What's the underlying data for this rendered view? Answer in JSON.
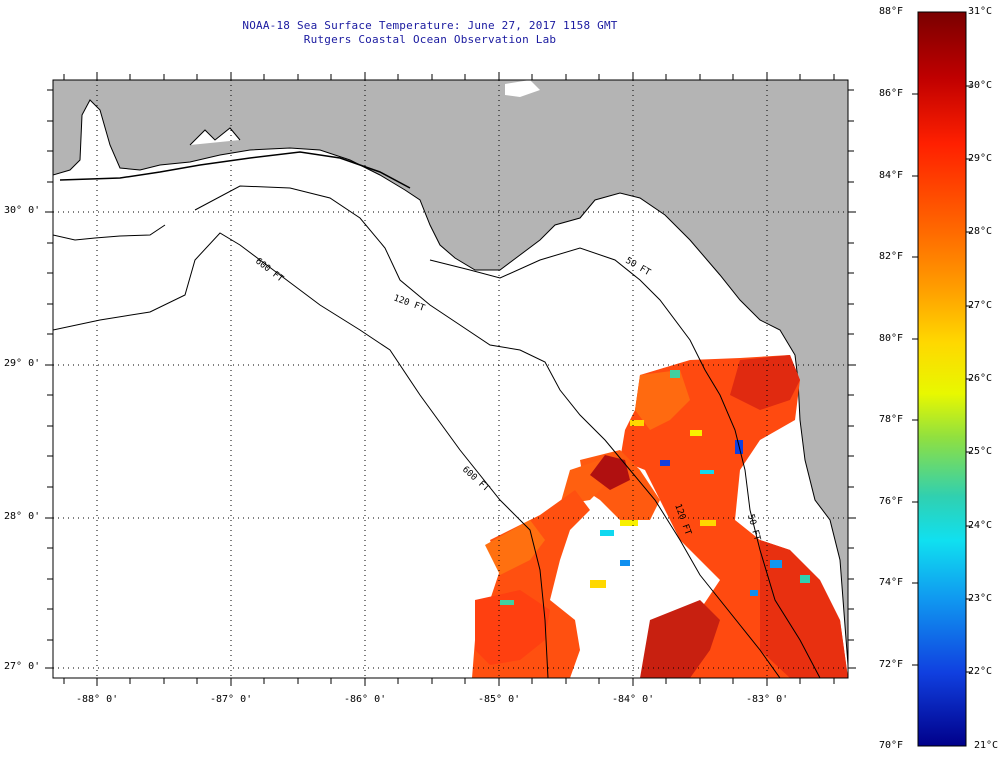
{
  "header": {
    "title": "NOAA-18 Sea Surface Temperature:  June 27, 2017 1158 GMT",
    "subtitle": "Rutgers Coastal Ocean Observation Lab"
  },
  "map": {
    "lat_labels": [
      "30° 0'",
      "29° 0'",
      "28° 0'",
      "27° 0'"
    ],
    "lon_labels": [
      "-88° 0'",
      "-87° 0'",
      "-86° 0'",
      "-85° 0'",
      "-84° 0'",
      "-83° 0'"
    ],
    "contour_labels": [
      "50 FT",
      "120 FT",
      "600 FT",
      "600 FT",
      "120 FT",
      "50 FT"
    ],
    "colors": {
      "land": "#b4b4b4",
      "no_data": "#ffffff",
      "grid": "#000000"
    }
  },
  "colorbar": {
    "f_labels": [
      "88°F",
      "86°F",
      "84°F",
      "82°F",
      "80°F",
      "78°F",
      "76°F",
      "74°F",
      "72°F",
      "70°F"
    ],
    "c_labels": [
      "31°C",
      "30°C",
      "29°C",
      "28°C",
      "27°C",
      "26°C",
      "25°C",
      "24°C",
      "23°C",
      "22°C",
      "21°C"
    ],
    "colors": [
      "#7a0000",
      "#d01010",
      "#ff3b00",
      "#ff7a00",
      "#ffb000",
      "#f8f000",
      "#a8e840",
      "#40d0a0",
      "#10d8f0",
      "#1090f0",
      "#1030e0",
      "#00008a"
    ]
  }
}
